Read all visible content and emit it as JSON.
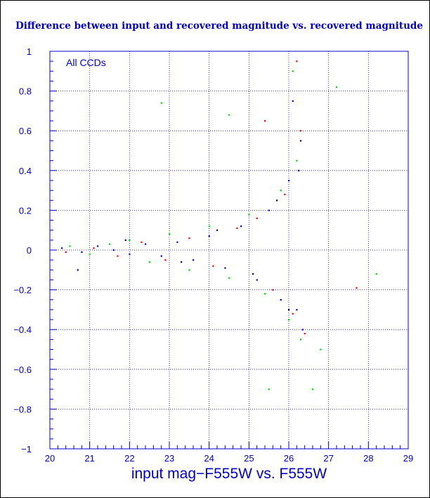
{
  "chart_data": {
    "type": "scatter",
    "title": "Difference between input and recovered magnitude vs. recovered magnitude",
    "xlabel": "input mag−F555W vs. F555W",
    "ylabel": "",
    "annotation": "All CCDs",
    "xlim": [
      20,
      29
    ],
    "ylim": [
      -1,
      1
    ],
    "xticks": [
      20,
      21,
      22,
      23,
      24,
      25,
      26,
      27,
      28,
      29
    ],
    "yticks": [
      -1,
      -0.8,
      -0.6,
      -0.4,
      -0.2,
      0,
      0.2,
      0.4,
      0.6,
      0.8,
      1
    ],
    "xtick_labels": [
      "20",
      "21",
      "22",
      "23",
      "24",
      "25",
      "26",
      "27",
      "28",
      "29"
    ],
    "ytick_labels": [
      "−1",
      "−0.8",
      "−0.6",
      "−0.4",
      "−0.2",
      "0",
      "0.2",
      "0.4",
      "0.6",
      "0.8",
      "1"
    ],
    "grid": true,
    "colors": {
      "axis": "#0000cc",
      "grid": "#0000cc",
      "title": "#0000cc"
    },
    "series": [
      {
        "color": "#0000ff",
        "points": [
          [
            20.3,
            0.01
          ],
          [
            20.8,
            -0.01
          ],
          [
            21.2,
            0.02
          ],
          [
            21.6,
            0.0
          ],
          [
            22.0,
            -0.02
          ],
          [
            22.4,
            0.03
          ],
          [
            22.8,
            -0.03
          ],
          [
            23.2,
            0.04
          ],
          [
            23.6,
            -0.05
          ],
          [
            24.0,
            0.07
          ],
          [
            24.4,
            -0.09
          ],
          [
            24.8,
            0.12
          ],
          [
            25.2,
            -0.15
          ],
          [
            25.5,
            0.2
          ],
          [
            25.8,
            -0.25
          ],
          [
            26.0,
            0.35
          ],
          [
            26.2,
            -0.3
          ],
          [
            26.3,
            0.55
          ],
          [
            26.1,
            0.75
          ],
          [
            26.35,
            -0.4
          ]
        ]
      },
      {
        "color": "#00dd00",
        "points": [
          [
            20.5,
            0.02
          ],
          [
            21.0,
            -0.02
          ],
          [
            21.5,
            0.03
          ],
          [
            22.0,
            0.05
          ],
          [
            22.5,
            -0.06
          ],
          [
            23.0,
            0.08
          ],
          [
            23.5,
            -0.1
          ],
          [
            24.0,
            0.12
          ],
          [
            24.5,
            -0.14
          ],
          [
            25.0,
            0.18
          ],
          [
            25.4,
            -0.22
          ],
          [
            25.8,
            0.3
          ],
          [
            26.0,
            -0.35
          ],
          [
            26.2,
            0.45
          ],
          [
            26.3,
            -0.45
          ],
          [
            26.1,
            0.9
          ],
          [
            25.5,
            -0.7
          ],
          [
            26.6,
            -0.7
          ],
          [
            26.8,
            -0.5
          ],
          [
            27.2,
            0.82
          ],
          [
            28.2,
            -0.12
          ],
          [
            22.8,
            0.74
          ],
          [
            24.5,
            0.68
          ]
        ]
      },
      {
        "color": "#ff0000",
        "points": [
          [
            20.4,
            -0.01
          ],
          [
            21.1,
            0.01
          ],
          [
            21.7,
            -0.03
          ],
          [
            22.3,
            0.04
          ],
          [
            22.9,
            -0.05
          ],
          [
            23.5,
            0.06
          ],
          [
            24.1,
            -0.08
          ],
          [
            24.7,
            0.11
          ],
          [
            25.2,
            0.16
          ],
          [
            25.6,
            -0.2
          ],
          [
            25.9,
            0.28
          ],
          [
            26.1,
            -0.32
          ],
          [
            26.3,
            0.6
          ],
          [
            26.2,
            0.95
          ],
          [
            26.4,
            -0.42
          ],
          [
            27.7,
            -0.19
          ],
          [
            25.4,
            0.65
          ]
        ]
      },
      {
        "color": "#000088",
        "points": [
          [
            20.7,
            -0.1
          ],
          [
            21.9,
            0.05
          ],
          [
            23.3,
            -0.06
          ],
          [
            24.2,
            0.1
          ],
          [
            25.1,
            -0.12
          ],
          [
            25.7,
            0.25
          ],
          [
            26.0,
            -0.3
          ],
          [
            26.25,
            0.4
          ]
        ]
      }
    ]
  }
}
